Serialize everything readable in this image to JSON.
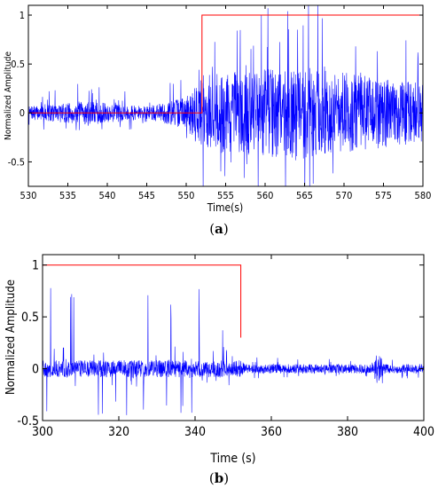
{
  "chart_data": [
    {
      "type": "line",
      "caption": "(a)",
      "caption_letter": "a",
      "xlabel": "Time(s)",
      "ylabel": "Normalized Amplitude",
      "xlim": [
        530,
        580
      ],
      "ylim": [
        -0.75,
        1.1
      ],
      "xticks": [
        530,
        535,
        540,
        545,
        550,
        555,
        560,
        565,
        570,
        575,
        580
      ],
      "yticks": [
        -0.5,
        0,
        0.5,
        1
      ],
      "ytick_labels": [
        "-0.5",
        "0",
        "0.5",
        "1"
      ],
      "grid": false,
      "series": [
        {
          "color": "#0000ff",
          "description": "noisy waveform, amplitude increasing after ~550 s",
          "envelope": [
            {
              "x": 530,
              "amp": 0.12
            },
            {
              "x": 537,
              "amp": 0.22
            },
            {
              "x": 545,
              "amp": 0.12
            },
            {
              "x": 550,
              "amp": 0.3
            },
            {
              "x": 552,
              "amp": 0.7
            },
            {
              "x": 558,
              "amp": 0.8
            },
            {
              "x": 565,
              "amp": 0.85
            },
            {
              "x": 572,
              "amp": 0.7
            },
            {
              "x": 580,
              "amp": 0.55
            }
          ]
        },
        {
          "color": "#ff0000",
          "points": [
            [
              530,
              0
            ],
            [
              552,
              0
            ],
            [
              552,
              1
            ],
            [
              580,
              1
            ]
          ]
        }
      ]
    },
    {
      "type": "line",
      "caption": "(b)",
      "caption_letter": "b",
      "xlabel": "Time (s)",
      "ylabel": "Normalized Amplitude",
      "xlim": [
        300,
        400
      ],
      "ylim": [
        -0.5,
        1.1
      ],
      "xticks": [
        300,
        320,
        340,
        360,
        380,
        400
      ],
      "yticks": [
        -0.5,
        0,
        0.5,
        1
      ],
      "ytick_labels": [
        "-0.5",
        "0",
        "0.5",
        "1"
      ],
      "grid": false,
      "series": [
        {
          "color": "#0000ff",
          "description": "noisy waveform with periodic spikes before ~352 s and a burst near 388 s",
          "envelope": [
            {
              "x": 300,
              "amp": 0.15
            },
            {
              "x": 352,
              "amp": 0.15
            },
            {
              "x": 353,
              "amp": 0.08
            },
            {
              "x": 386,
              "amp": 0.08
            },
            {
              "x": 388,
              "amp": 0.3
            },
            {
              "x": 390,
              "amp": 0.08
            },
            {
              "x": 400,
              "amp": 0.08
            }
          ]
        },
        {
          "color": "#ff0000",
          "points": [
            [
              300,
              1
            ],
            [
              352,
              1
            ],
            [
              352,
              0.3
            ]
          ]
        }
      ]
    }
  ]
}
